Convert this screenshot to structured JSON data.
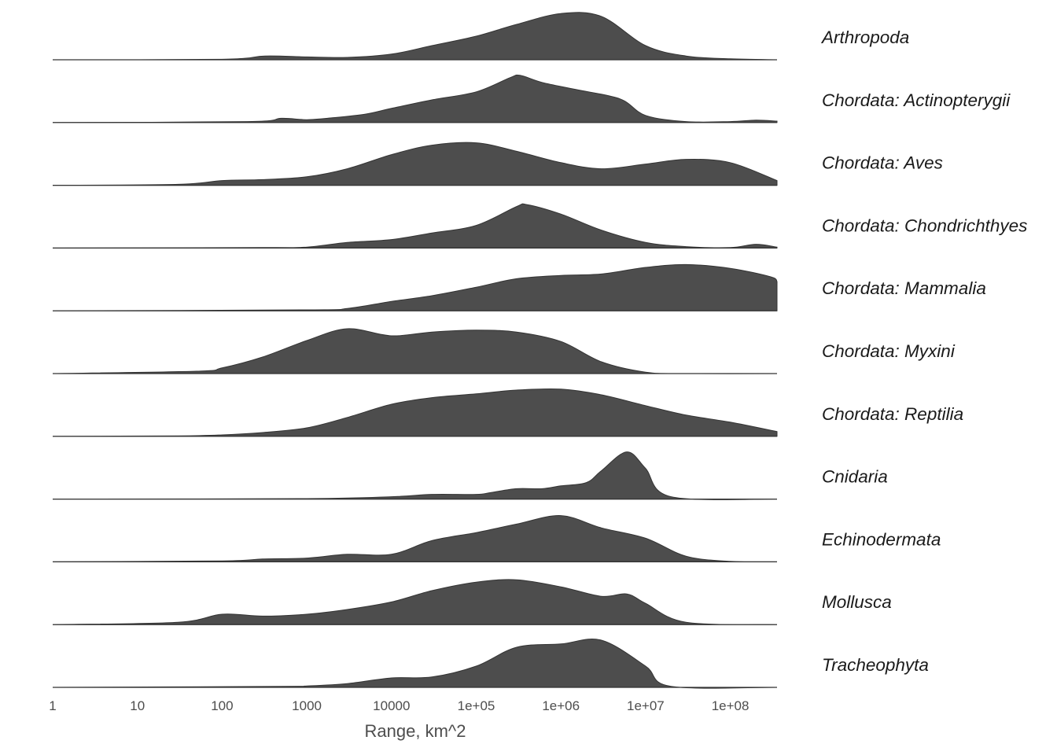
{
  "chart_data": {
    "type": "area",
    "subtype": "ridgeline-density",
    "xlabel": "Range, km^2",
    "x_scale": "log10",
    "xlim": [
      1,
      400000000
    ],
    "x_ticks": [
      1,
      10,
      100,
      1000,
      10000,
      100000,
      1000000,
      10000000,
      100000000
    ],
    "x_tick_labels": [
      "1",
      "10",
      "100",
      "1000",
      "10000",
      "1e+05",
      "1e+06",
      "1e+07",
      "1e+08"
    ],
    "fill_color": "#4d4d4d",
    "line_color": "#333333",
    "grid": false,
    "legend": "none",
    "series": [
      {
        "name": "Arthropoda",
        "points": [
          [
            1,
            0
          ],
          [
            100,
            0.01
          ],
          [
            320,
            0.08
          ],
          [
            1000,
            0.06
          ],
          [
            3000,
            0.05
          ],
          [
            10000,
            0.12
          ],
          [
            30000,
            0.3
          ],
          [
            100000,
            0.5
          ],
          [
            300000,
            0.75
          ],
          [
            1000000,
            0.98
          ],
          [
            3000000,
            0.92
          ],
          [
            10000000,
            0.3
          ],
          [
            30000000,
            0.08
          ],
          [
            100000000,
            0.02
          ],
          [
            400000000,
            0
          ]
        ]
      },
      {
        "name": "Chordata: Actinopterygii",
        "points": [
          [
            1,
            0
          ],
          [
            200,
            0.02
          ],
          [
            500,
            0.09
          ],
          [
            1000,
            0.06
          ],
          [
            2000,
            0.1
          ],
          [
            5000,
            0.18
          ],
          [
            10000,
            0.3
          ],
          [
            30000,
            0.48
          ],
          [
            100000,
            0.65
          ],
          [
            250000,
            0.95
          ],
          [
            330000,
            1.0
          ],
          [
            600000,
            0.85
          ],
          [
            1500000,
            0.7
          ],
          [
            5000000,
            0.5
          ],
          [
            10000000,
            0.15
          ],
          [
            30000000,
            0.02
          ],
          [
            100000000,
            0.02
          ],
          [
            200000000,
            0.05
          ],
          [
            400000000,
            0.03
          ]
        ]
      },
      {
        "name": "Chordata: Aves",
        "points": [
          [
            1,
            0
          ],
          [
            30,
            0.02
          ],
          [
            100,
            0.1
          ],
          [
            300,
            0.12
          ],
          [
            1000,
            0.18
          ],
          [
            3000,
            0.35
          ],
          [
            10000,
            0.65
          ],
          [
            30000,
            0.85
          ],
          [
            100000,
            0.9
          ],
          [
            300000,
            0.72
          ],
          [
            1000000,
            0.48
          ],
          [
            3000000,
            0.35
          ],
          [
            10000000,
            0.45
          ],
          [
            30000000,
            0.55
          ],
          [
            100000000,
            0.48
          ],
          [
            400000000,
            0.1
          ]
        ]
      },
      {
        "name": "Chordata: Chondrichthyes",
        "points": [
          [
            1,
            0
          ],
          [
            300,
            0.01
          ],
          [
            1000,
            0.02
          ],
          [
            3000,
            0.12
          ],
          [
            10000,
            0.18
          ],
          [
            30000,
            0.32
          ],
          [
            100000,
            0.48
          ],
          [
            300000,
            0.88
          ],
          [
            400000,
            0.92
          ],
          [
            1000000,
            0.72
          ],
          [
            3000000,
            0.38
          ],
          [
            10000000,
            0.12
          ],
          [
            30000000,
            0.03
          ],
          [
            100000000,
            0.01
          ],
          [
            200000000,
            0.08
          ],
          [
            400000000,
            0.02
          ]
        ]
      },
      {
        "name": "Chordata: Mammalia",
        "points": [
          [
            1,
            0
          ],
          [
            1000,
            0.02
          ],
          [
            3000,
            0.05
          ],
          [
            10000,
            0.2
          ],
          [
            30000,
            0.32
          ],
          [
            100000,
            0.5
          ],
          [
            300000,
            0.68
          ],
          [
            1000000,
            0.75
          ],
          [
            3000000,
            0.78
          ],
          [
            10000000,
            0.92
          ],
          [
            30000000,
            0.98
          ],
          [
            100000000,
            0.9
          ],
          [
            300000000,
            0.72
          ],
          [
            400000000,
            0.62
          ]
        ]
      },
      {
        "name": "Chordata: Myxini",
        "points": [
          [
            1,
            0
          ],
          [
            50,
            0.05
          ],
          [
            100,
            0.12
          ],
          [
            300,
            0.35
          ],
          [
            1000,
            0.7
          ],
          [
            3000,
            0.95
          ],
          [
            10000,
            0.8
          ],
          [
            30000,
            0.88
          ],
          [
            100000,
            0.92
          ],
          [
            300000,
            0.88
          ],
          [
            1000000,
            0.68
          ],
          [
            3000000,
            0.25
          ],
          [
            10000000,
            0.03
          ],
          [
            30000000,
            0
          ],
          [
            400000000,
            0
          ]
        ]
      },
      {
        "name": "Chordata: Reptilia",
        "points": [
          [
            1,
            0
          ],
          [
            30,
            0.01
          ],
          [
            100,
            0.03
          ],
          [
            300,
            0.08
          ],
          [
            1000,
            0.18
          ],
          [
            3000,
            0.4
          ],
          [
            10000,
            0.68
          ],
          [
            30000,
            0.82
          ],
          [
            100000,
            0.9
          ],
          [
            300000,
            0.98
          ],
          [
            1000000,
            1.0
          ],
          [
            3000000,
            0.88
          ],
          [
            10000000,
            0.65
          ],
          [
            30000000,
            0.45
          ],
          [
            100000000,
            0.3
          ],
          [
            400000000,
            0.1
          ]
        ]
      },
      {
        "name": "Cnidaria",
        "points": [
          [
            1,
            0
          ],
          [
            1000,
            0.01
          ],
          [
            10000,
            0.05
          ],
          [
            30000,
            0.1
          ],
          [
            100000,
            0.1
          ],
          [
            150000,
            0.14
          ],
          [
            300000,
            0.22
          ],
          [
            600000,
            0.22
          ],
          [
            1000000,
            0.28
          ],
          [
            2000000,
            0.35
          ],
          [
            3000000,
            0.6
          ],
          [
            6000000,
            1.0
          ],
          [
            10000000,
            0.65
          ],
          [
            20000000,
            0.05
          ],
          [
            400000000,
            0
          ]
        ]
      },
      {
        "name": "Echinodermata",
        "points": [
          [
            1,
            0
          ],
          [
            100,
            0.02
          ],
          [
            300,
            0.06
          ],
          [
            1000,
            0.08
          ],
          [
            3000,
            0.16
          ],
          [
            10000,
            0.16
          ],
          [
            30000,
            0.45
          ],
          [
            100000,
            0.62
          ],
          [
            300000,
            0.8
          ],
          [
            1000000,
            0.98
          ],
          [
            3000000,
            0.72
          ],
          [
            10000000,
            0.5
          ],
          [
            30000000,
            0.12
          ],
          [
            100000000,
            0.01
          ],
          [
            400000000,
            0
          ]
        ]
      },
      {
        "name": "Mollusca",
        "points": [
          [
            1,
            0
          ],
          [
            30,
            0.05
          ],
          [
            100,
            0.22
          ],
          [
            300,
            0.18
          ],
          [
            1000,
            0.22
          ],
          [
            3000,
            0.32
          ],
          [
            10000,
            0.48
          ],
          [
            30000,
            0.72
          ],
          [
            100000,
            0.9
          ],
          [
            300000,
            0.95
          ],
          [
            1000000,
            0.8
          ],
          [
            3000000,
            0.6
          ],
          [
            6000000,
            0.65
          ],
          [
            10000000,
            0.45
          ],
          [
            30000000,
            0.05
          ],
          [
            400000000,
            0
          ]
        ]
      },
      {
        "name": "Tracheophyta",
        "points": [
          [
            1,
            0
          ],
          [
            500,
            0.02
          ],
          [
            1000,
            0.03
          ],
          [
            3000,
            0.08
          ],
          [
            10000,
            0.2
          ],
          [
            30000,
            0.22
          ],
          [
            100000,
            0.45
          ],
          [
            300000,
            0.85
          ],
          [
            1000000,
            0.92
          ],
          [
            3000000,
            1.0
          ],
          [
            10000000,
            0.45
          ],
          [
            20000000,
            0.02
          ],
          [
            400000000,
            0
          ]
        ]
      }
    ]
  }
}
